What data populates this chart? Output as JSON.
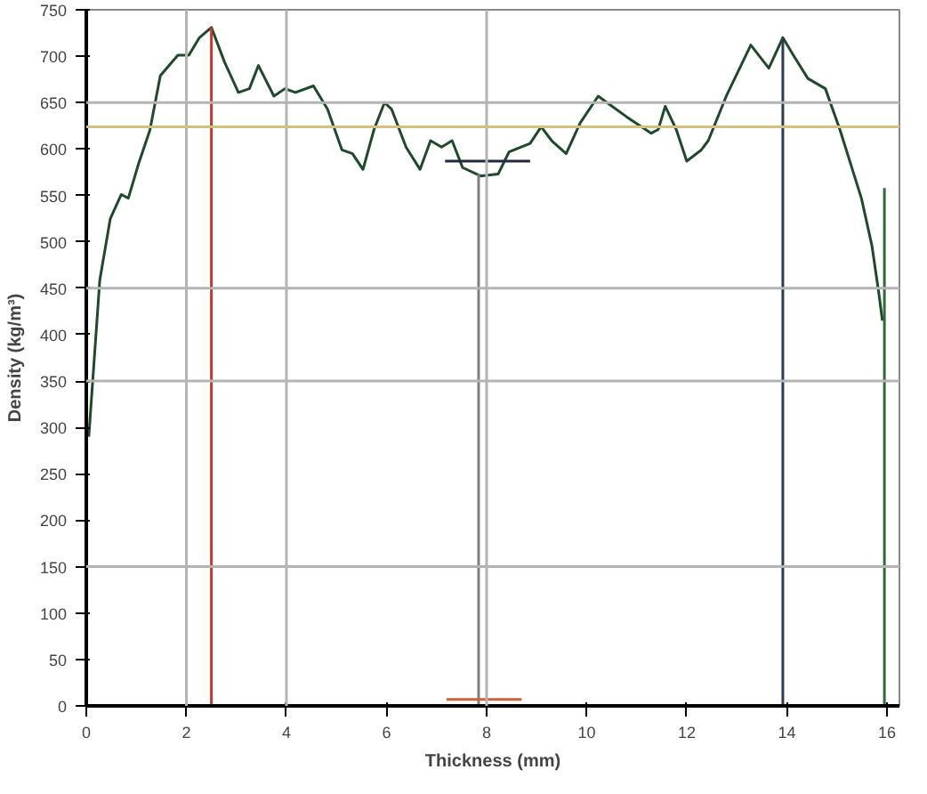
{
  "chart_data": {
    "type": "line",
    "xlabel": "Thickness (mm)",
    "ylabel": "Density (kg/m³)",
    "xlim": [
      0,
      16.25
    ],
    "ylim": [
      0,
      750
    ],
    "xticks": [
      0,
      2,
      4,
      6,
      8,
      10,
      12,
      14,
      16
    ],
    "yticks": [
      0,
      50,
      100,
      150,
      200,
      250,
      300,
      350,
      400,
      450,
      500,
      550,
      600,
      650,
      700,
      750
    ],
    "grid": false,
    "marker": "none",
    "line_style": "solid",
    "ref_lines": [
      {
        "axis": "x",
        "value": 2,
        "color": "#b4b4b4"
      },
      {
        "axis": "x",
        "value": 4,
        "color": "#b4b4b4"
      },
      {
        "axis": "x",
        "value": 8,
        "color": "#b4b4b4"
      },
      {
        "axis": "y",
        "value": 150,
        "color": "#b4b4b4"
      },
      {
        "axis": "y",
        "value": 350,
        "color": "#b4b4b4"
      },
      {
        "axis": "y",
        "value": 450,
        "color": "#b4b4b4"
      },
      {
        "axis": "y",
        "value": 650,
        "color": "#b4b4b4"
      },
      {
        "axis": "y",
        "value": 624,
        "color": "#d2c080"
      }
    ],
    "series": [
      {
        "color": "#1f4a2a",
        "x": [
          0.05,
          0.27,
          0.48,
          0.7,
          0.84,
          1.05,
          1.27,
          1.48,
          1.83,
          2.05,
          2.26,
          2.5,
          2.76,
          3.04,
          3.26,
          3.44,
          3.75,
          3.97,
          4.18,
          4.54,
          4.82,
          5.11,
          5.32,
          5.53,
          5.75,
          5.96,
          6.1,
          6.39,
          6.67,
          6.88,
          7.1,
          7.31,
          7.52,
          7.88,
          8.23,
          8.45,
          8.87,
          9.09,
          9.3,
          9.59,
          9.87,
          10.23,
          10.51,
          10.79,
          11.29,
          11.43,
          11.57,
          11.79,
          12.0,
          12.29,
          12.43,
          12.79,
          13.28,
          13.64,
          13.92,
          14.13,
          14.42,
          14.77,
          15.06,
          15.49,
          15.7,
          15.84,
          15.91
        ],
        "values": [
          290,
          459,
          525,
          551,
          547,
          585,
          620,
          679,
          701,
          701,
          720,
          731,
          694,
          661,
          665,
          690,
          657,
          665,
          661,
          668,
          643,
          599,
          595,
          578,
          621,
          650,
          643,
          602,
          578,
          609,
          602,
          609,
          580,
          571,
          573,
          597,
          606,
          624,
          609,
          595,
          628,
          657,
          646,
          635,
          617,
          621,
          646,
          621,
          587,
          599,
          609,
          657,
          712,
          687,
          720,
          701,
          676,
          665,
          621,
          547,
          496,
          444,
          415
        ]
      },
      {
        "color": "#c0392b",
        "x": [
          2.5,
          2.5
        ],
        "values": [
          0,
          731
        ]
      },
      {
        "color": "#7f7f7f",
        "x": [
          7.84,
          7.84
        ],
        "values": [
          0,
          573
        ]
      },
      {
        "color": "#1f2a3c",
        "x": [
          7.17,
          8.87
        ],
        "values": [
          587,
          587
        ]
      },
      {
        "color": "#2b3a55",
        "x": [
          13.92,
          13.92
        ],
        "values": [
          0,
          720
        ]
      },
      {
        "color": "#2e6b3a",
        "x": [
          15.95,
          15.95
        ],
        "values": [
          0,
          558
        ]
      },
      {
        "color": "#c8643c",
        "x": [
          7.2,
          8.7
        ],
        "values": [
          7,
          7
        ]
      }
    ]
  }
}
